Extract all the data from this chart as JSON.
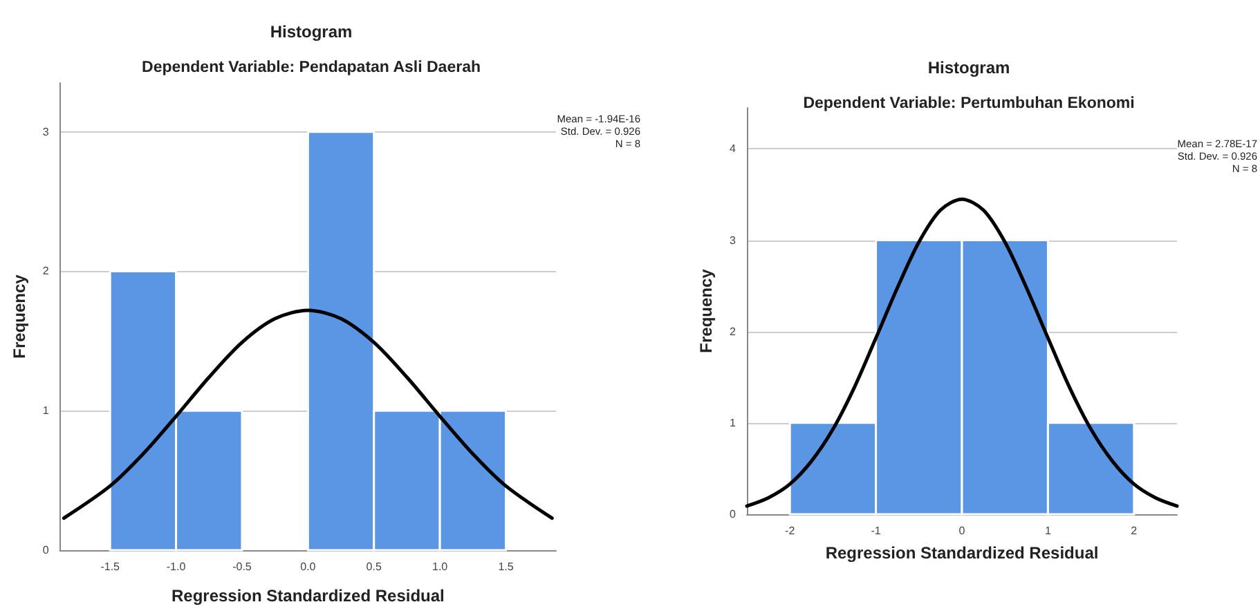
{
  "chart_data": [
    {
      "type": "histogram",
      "title": "Histogram",
      "subtitle": "Dependent Variable: Pendapatan Asli Daerah",
      "xlabel": "Regression Standardized Residual",
      "ylabel": "Frequency",
      "bins": [
        -1.5,
        -1.0,
        -0.5,
        0.0,
        0.5,
        1.0,
        1.5
      ],
      "values": [
        2,
        1,
        0,
        3,
        1,
        1
      ],
      "color": "#5b96e4",
      "series": [
        {
          "type": "line",
          "color": "#000000",
          "marker": "none",
          "x": [
            -1.85,
            -1.5,
            -1.25,
            -1.0,
            -0.75,
            -0.5,
            -0.25,
            0.0,
            0.25,
            0.5,
            0.75,
            1.0,
            1.25,
            1.5,
            1.85
          ],
          "values": [
            0.23,
            0.46,
            0.69,
            0.96,
            1.24,
            1.49,
            1.66,
            1.72,
            1.66,
            1.49,
            1.24,
            0.96,
            0.69,
            0.46,
            0.23
          ]
        }
      ],
      "xlim": [
        -1.88,
        1.88
      ],
      "xticks": [
        -1.5,
        {
          "value": -1.0,
          "label": "-1.0"
        },
        -0.5,
        {
          "value": 0.0,
          "label": "0.0"
        },
        0.5,
        {
          "value": 1.0,
          "label": "1.0"
        },
        1.5
      ],
      "ylim": [
        0,
        3.35
      ],
      "yticks": [
        0,
        1,
        2,
        3
      ],
      "grid": "y",
      "annotations": [
        "Mean = -1.94E-16",
        "Std. Dev. = 0.926",
        "N = 8"
      ]
    },
    {
      "type": "histogram",
      "title": "Histogram",
      "subtitle": "Dependent Variable: Pertumbuhan Ekonomi",
      "xlabel": "Regression Standardized Residual",
      "ylabel": "Frequency",
      "bins": [
        -2,
        -1,
        0,
        1,
        2
      ],
      "values": [
        1,
        3,
        3,
        1
      ],
      "color": "#5b96e4",
      "series": [
        {
          "type": "line",
          "color": "#000000",
          "marker": "none",
          "x": [
            -2.5,
            -2.25,
            -2.0,
            -1.75,
            -1.5,
            -1.25,
            -1.0,
            -0.75,
            -0.5,
            -0.25,
            0.0,
            0.25,
            0.5,
            0.75,
            1.0,
            1.25,
            1.5,
            1.75,
            2.0,
            2.25,
            2.5
          ],
          "values": [
            0.09,
            0.18,
            0.33,
            0.58,
            0.93,
            1.39,
            1.93,
            2.48,
            2.98,
            3.33,
            3.45,
            3.33,
            2.98,
            2.48,
            1.93,
            1.39,
            0.93,
            0.58,
            0.33,
            0.18,
            0.09
          ]
        }
      ],
      "xlim": [
        -2.5,
        2.5
      ],
      "xticks": [
        -2,
        -1,
        0,
        1,
        2
      ],
      "ylim": [
        0,
        4.45
      ],
      "yticks": [
        0,
        1,
        2,
        3,
        4
      ],
      "grid": "y",
      "annotations": [
        "Mean = 2.78E-17",
        "Std. Dev. = 0.926",
        "N = 8"
      ]
    }
  ]
}
